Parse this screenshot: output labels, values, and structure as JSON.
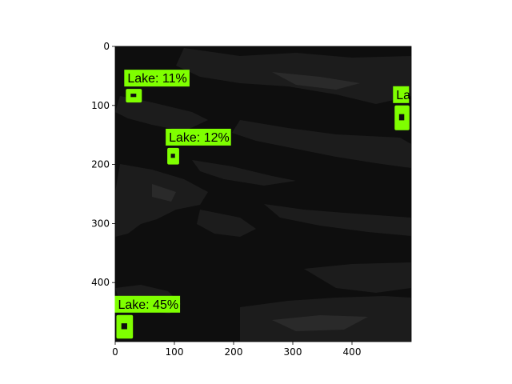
{
  "colors": {
    "detection": "#7fff00",
    "image_base": "#0e0e0e",
    "image_patch": "#1c1c1c",
    "label_text": "#000000",
    "axis": "#000000",
    "page_background": "#ffffff"
  },
  "axes": {
    "x_range": [
      0,
      500
    ],
    "y_range": [
      500,
      0
    ],
    "x_ticks": [
      "0",
      "100",
      "200",
      "300",
      "400"
    ],
    "y_ticks": [
      "0",
      "100",
      "200",
      "300",
      "400"
    ]
  },
  "detections": [
    {
      "label": "Lake: 11%",
      "x": [
        18,
        45
      ],
      "y": [
        72,
        95
      ]
    },
    {
      "label": "Lake: 12%",
      "x": [
        88,
        108
      ],
      "y": [
        172,
        200
      ]
    },
    {
      "label": "Lake: 45%",
      "x": [
        2,
        30
      ],
      "y": [
        455,
        495
      ]
    },
    {
      "label": "La",
      "x": [
        472,
        497
      ],
      "y": [
        100,
        142
      ]
    }
  ]
}
